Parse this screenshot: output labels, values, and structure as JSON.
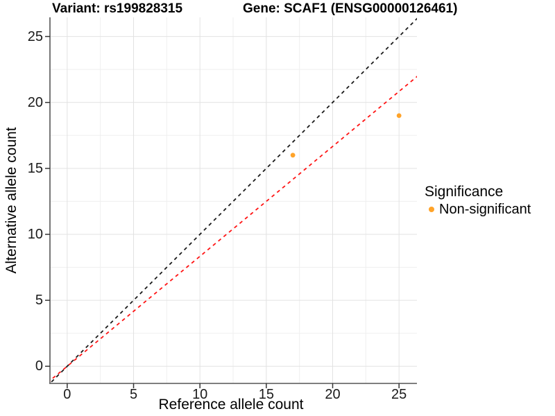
{
  "chart_data": {
    "type": "scatter",
    "title_left": "Variant: rs199828315",
    "title_right": "Gene: SCAF1 (ENSG00000126461)",
    "xlabel": "Reference allele count",
    "ylabel": "Alternative allele count",
    "xlim": [
      -1.3,
      26.35
    ],
    "ylim": [
      -1.3,
      26.45
    ],
    "x_ticks": [
      0,
      5,
      10,
      15,
      20,
      25
    ],
    "y_ticks": [
      0,
      5,
      10,
      15,
      20,
      25
    ],
    "x_minor_ticks": [
      2.5,
      7.5,
      12.5,
      17.5,
      22.5
    ],
    "y_minor_ticks": [
      2.5,
      7.5,
      12.5,
      17.5,
      22.5
    ],
    "grid": true,
    "series": [
      {
        "name": "Non-significant",
        "color": "#FFA329",
        "points": [
          {
            "x": 17,
            "y": 16
          },
          {
            "x": 25,
            "y": 19
          }
        ]
      }
    ],
    "lines": [
      {
        "name": "identity-line",
        "slope": 1.0,
        "intercept": 0,
        "color": "#1a1a1a",
        "style": "dashed"
      },
      {
        "name": "expected-ratio-line",
        "slope": 0.8333,
        "intercept": 0,
        "color": "#FF1414",
        "style": "dashed"
      }
    ],
    "legend": {
      "position": "right",
      "title": "Significance",
      "items": [
        {
          "label": "Non-significant",
          "color": "#FFA329"
        }
      ]
    },
    "colors": {
      "axis_line": "#555555",
      "tick_mark": "#333333",
      "grid_major": "#e2e2e2",
      "grid_minor": "#efefef"
    }
  }
}
